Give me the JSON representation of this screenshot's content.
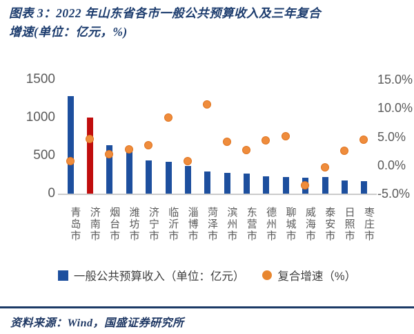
{
  "title": {
    "line1": "图表 3：2022 年山东省各市一般公共预算收入及三年复合",
    "line2": "增速(单位：亿元，%)"
  },
  "chart_data": {
    "type": "bar",
    "categories": [
      "青岛市",
      "济南市",
      "烟台市",
      "潍坊市",
      "济宁市",
      "临沂市",
      "淄博市",
      "菏泽市",
      "滨州市",
      "东营市",
      "德州市",
      "聊城市",
      "威海市",
      "泰安市",
      "日照市",
      "枣庄市"
    ],
    "series": [
      {
        "name": "一般公共预算收入（单位：亿元）",
        "type": "bar",
        "axis": "left",
        "values": [
          1280,
          1000,
          640,
          585,
          435,
          420,
          365,
          295,
          275,
          260,
          230,
          215,
          210,
          220,
          175,
          160
        ],
        "color": "#1d4f9e",
        "highlight_index": 1,
        "highlight_color": "#c00d0d"
      },
      {
        "name": "复合增速（%）",
        "type": "scatter",
        "axis": "right",
        "values": [
          0.8,
          4.6,
          2.0,
          2.8,
          3.5,
          8.4,
          0.7,
          10.7,
          4.1,
          2.7,
          4.4,
          5.1,
          -3.5,
          -0.3,
          2.6,
          4.5
        ],
        "color": "#ef8c3c"
      }
    ],
    "left_axis": {
      "min": 0,
      "max": 1500,
      "ticks": [
        "1500",
        "1000",
        "500",
        "0"
      ]
    },
    "right_axis": {
      "min": -5,
      "max": 15,
      "ticks": [
        "15.0%",
        "10.0%",
        "5.0%",
        "0.0%",
        "-5.0%"
      ]
    },
    "grid": false,
    "legend_position": "bottom"
  },
  "legend": {
    "bars": "一般公共预算收入（单位：亿元）",
    "dots": "复合增速（%）"
  },
  "source": "资料来源：Wind，国盛证券研究所"
}
